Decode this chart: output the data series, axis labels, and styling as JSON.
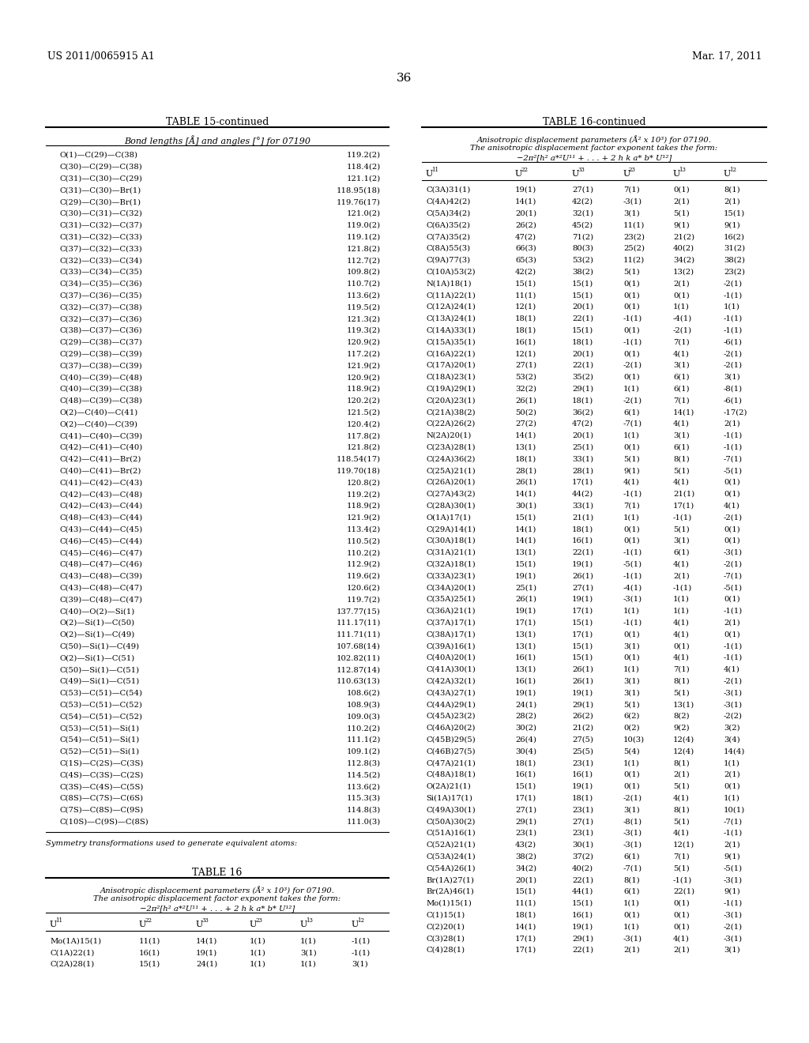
{
  "header_left": "US 2011/0065915 A1",
  "header_right": "Mar. 17, 2011",
  "page_number": "36",
  "table15_title": "TABLE 15-continued",
  "table15_subtitle": "Bond lengths [Å] and angles [°] for 07190",
  "table15_data": [
    [
      "O(1)—C(29)—C(38)",
      "119.2(2)"
    ],
    [
      "C(30)—C(29)—C(38)",
      "118.4(2)"
    ],
    [
      "C(31)—C(30)—C(29)",
      "121.1(2)"
    ],
    [
      "C(31)—C(30)—Br(1)",
      "118.95(18)"
    ],
    [
      "C(29)—C(30)—Br(1)",
      "119.76(17)"
    ],
    [
      "C(30)—C(31)—C(32)",
      "121.0(2)"
    ],
    [
      "C(31)—C(32)—C(37)",
      "119.0(2)"
    ],
    [
      "C(31)—C(32)—C(33)",
      "119.1(2)"
    ],
    [
      "C(37)—C(32)—C(33)",
      "121.8(2)"
    ],
    [
      "C(32)—C(33)—C(34)",
      "112.7(2)"
    ],
    [
      "C(33)—C(34)—C(35)",
      "109.8(2)"
    ],
    [
      "C(34)—C(35)—C(36)",
      "110.7(2)"
    ],
    [
      "C(37)—C(36)—C(35)",
      "113.6(2)"
    ],
    [
      "C(32)—C(37)—C(38)",
      "119.5(2)"
    ],
    [
      "C(32)—C(37)—C(36)",
      "121.3(2)"
    ],
    [
      "C(38)—C(37)—C(36)",
      "119.3(2)"
    ],
    [
      "C(29)—C(38)—C(37)",
      "120.9(2)"
    ],
    [
      "C(29)—C(38)—C(39)",
      "117.2(2)"
    ],
    [
      "C(37)—C(38)—C(39)",
      "121.9(2)"
    ],
    [
      "C(40)—C(39)—C(48)",
      "120.9(2)"
    ],
    [
      "C(40)—C(39)—C(38)",
      "118.9(2)"
    ],
    [
      "C(48)—C(39)—C(38)",
      "120.2(2)"
    ],
    [
      "O(2)—C(40)—C(41)",
      "121.5(2)"
    ],
    [
      "O(2)—C(40)—C(39)",
      "120.4(2)"
    ],
    [
      "C(41)—C(40)—C(39)",
      "117.8(2)"
    ],
    [
      "C(42)—C(41)—C(40)",
      "121.8(2)"
    ],
    [
      "C(42)—C(41)—Br(2)",
      "118.54(17)"
    ],
    [
      "C(40)—C(41)—Br(2)",
      "119.70(18)"
    ],
    [
      "C(41)—C(42)—C(43)",
      "120.8(2)"
    ],
    [
      "C(42)—C(43)—C(48)",
      "119.2(2)"
    ],
    [
      "C(42)—C(43)—C(44)",
      "118.9(2)"
    ],
    [
      "C(48)—C(43)—C(44)",
      "121.9(2)"
    ],
    [
      "C(43)—C(44)—C(45)",
      "113.4(2)"
    ],
    [
      "C(46)—C(45)—C(44)",
      "110.5(2)"
    ],
    [
      "C(45)—C(46)—C(47)",
      "110.2(2)"
    ],
    [
      "C(48)—C(47)—C(46)",
      "112.9(2)"
    ],
    [
      "C(43)—C(48)—C(39)",
      "119.6(2)"
    ],
    [
      "C(43)—C(48)—C(47)",
      "120.6(2)"
    ],
    [
      "C(39)—C(48)—C(47)",
      "119.7(2)"
    ],
    [
      "C(40)—O(2)—Si(1)",
      "137.77(15)"
    ],
    [
      "O(2)—Si(1)—C(50)",
      "111.17(11)"
    ],
    [
      "O(2)—Si(1)—C(49)",
      "111.71(11)"
    ],
    [
      "C(50)—Si(1)—C(49)",
      "107.68(14)"
    ],
    [
      "O(2)—Si(1)—C(51)",
      "102.82(11)"
    ],
    [
      "C(50)—Si(1)—C(51)",
      "112.87(14)"
    ],
    [
      "C(49)—Si(1)—C(51)",
      "110.63(13)"
    ],
    [
      "C(53)—C(51)—C(54)",
      "108.6(2)"
    ],
    [
      "C(53)—C(51)—C(52)",
      "108.9(3)"
    ],
    [
      "C(54)—C(51)—C(52)",
      "109.0(3)"
    ],
    [
      "C(53)—C(51)—Si(1)",
      "110.2(2)"
    ],
    [
      "C(54)—C(51)—Si(1)",
      "111.1(2)"
    ],
    [
      "C(52)—C(51)—Si(1)",
      "109.1(2)"
    ],
    [
      "C(1S)—C(2S)—C(3S)",
      "112.8(3)"
    ],
    [
      "C(4S)—C(3S)—C(2S)",
      "114.5(2)"
    ],
    [
      "C(3S)—C(4S)—C(5S)",
      "113.6(2)"
    ],
    [
      "C(8S)—C(7S)—C(6S)",
      "115.3(3)"
    ],
    [
      "C(7S)—C(8S)—C(9S)",
      "114.8(3)"
    ],
    [
      "C(10S)—C(9S)—C(8S)",
      "111.0(3)"
    ]
  ],
  "symmetry_note": "Symmetry transformations used to generate equivalent atoms:",
  "table16_title": "TABLE 16",
  "table16_desc1": "Anisotropic displacement parameters (Å² x 10³) for 07190.",
  "table16_desc2": "The anisotropic displacement factor exponent takes the form:",
  "table16_desc3": "−2π²[h² a*²U¹¹ + . . . + 2 h k a* b* U¹²]",
  "table16_right_title": "TABLE 16-continued",
  "table16_right_desc1": "Anisotropic displacement parameters (Å² x 10³) for 07190.",
  "table16_right_desc2": "The anisotropic displacement factor exponent takes the form:",
  "table16_right_desc3": "−2π²[h² a*²U¹¹ + . . . + 2 h k a* b* U¹²]",
  "table16_left_data": [
    [
      "Mo(1A)15(1)",
      "11(1)",
      "14(1)",
      "1(1)",
      "1(1)",
      "-1(1)"
    ],
    [
      "C(1A)22(1)",
      "16(1)",
      "19(1)",
      "1(1)",
      "3(1)",
      "-1(1)"
    ],
    [
      "C(2A)28(1)",
      "15(1)",
      "24(1)",
      "1(1)",
      "1(1)",
      "3(1)"
    ]
  ],
  "table16_right_data": [
    [
      "C(3A)31(1)",
      "19(1)",
      "27(1)",
      "7(1)",
      "0(1)",
      "8(1)"
    ],
    [
      "C(4A)42(2)",
      "14(1)",
      "42(2)",
      "-3(1)",
      "2(1)",
      "2(1)"
    ],
    [
      "C(5A)34(2)",
      "20(1)",
      "32(1)",
      "3(1)",
      "5(1)",
      "15(1)"
    ],
    [
      "C(6A)35(2)",
      "26(2)",
      "45(2)",
      "11(1)",
      "9(1)",
      "9(1)"
    ],
    [
      "C(7A)35(2)",
      "47(2)",
      "71(2)",
      "23(2)",
      "21(2)",
      "16(2)"
    ],
    [
      "C(8A)55(3)",
      "66(3)",
      "80(3)",
      "25(2)",
      "40(2)",
      "31(2)"
    ],
    [
      "C(9A)77(3)",
      "65(3)",
      "53(2)",
      "11(2)",
      "34(2)",
      "38(2)"
    ],
    [
      "C(10A)53(2)",
      "42(2)",
      "38(2)",
      "5(1)",
      "13(2)",
      "23(2)"
    ],
    [
      "N(1A)18(1)",
      "15(1)",
      "15(1)",
      "0(1)",
      "2(1)",
      "-2(1)"
    ],
    [
      "C(11A)22(1)",
      "11(1)",
      "15(1)",
      "0(1)",
      "0(1)",
      "-1(1)"
    ],
    [
      "C(12A)24(1)",
      "12(1)",
      "20(1)",
      "0(1)",
      "1(1)",
      "1(1)"
    ],
    [
      "C(13A)24(1)",
      "18(1)",
      "22(1)",
      "-1(1)",
      "-4(1)",
      "-1(1)"
    ],
    [
      "C(14A)33(1)",
      "18(1)",
      "15(1)",
      "0(1)",
      "-2(1)",
      "-1(1)"
    ],
    [
      "C(15A)35(1)",
      "16(1)",
      "18(1)",
      "-1(1)",
      "7(1)",
      "-6(1)"
    ],
    [
      "C(16A)22(1)",
      "12(1)",
      "20(1)",
      "0(1)",
      "4(1)",
      "-2(1)"
    ],
    [
      "C(17A)20(1)",
      "27(1)",
      "22(1)",
      "-2(1)",
      "3(1)",
      "-2(1)"
    ],
    [
      "C(18A)23(1)",
      "53(2)",
      "35(2)",
      "0(1)",
      "6(1)",
      "3(1)"
    ],
    [
      "C(19A)29(1)",
      "32(2)",
      "29(1)",
      "1(1)",
      "6(1)",
      "-8(1)"
    ],
    [
      "C(20A)23(1)",
      "26(1)",
      "18(1)",
      "-2(1)",
      "7(1)",
      "-6(1)"
    ],
    [
      "C(21A)38(2)",
      "50(2)",
      "36(2)",
      "6(1)",
      "14(1)",
      "-17(2)"
    ],
    [
      "C(22A)26(2)",
      "27(2)",
      "47(2)",
      "-7(1)",
      "4(1)",
      "2(1)"
    ],
    [
      "N(2A)20(1)",
      "14(1)",
      "20(1)",
      "1(1)",
      "3(1)",
      "-1(1)"
    ],
    [
      "C(23A)28(1)",
      "13(1)",
      "25(1)",
      "0(1)",
      "6(1)",
      "-1(1)"
    ],
    [
      "C(24A)36(2)",
      "18(1)",
      "33(1)",
      "5(1)",
      "8(1)",
      "-7(1)"
    ],
    [
      "C(25A)21(1)",
      "28(1)",
      "28(1)",
      "9(1)",
      "5(1)",
      "-5(1)"
    ],
    [
      "C(26A)20(1)",
      "26(1)",
      "17(1)",
      "4(1)",
      "4(1)",
      "0(1)"
    ],
    [
      "C(27A)43(2)",
      "14(1)",
      "44(2)",
      "-1(1)",
      "21(1)",
      "0(1)"
    ],
    [
      "C(28A)30(1)",
      "30(1)",
      "33(1)",
      "7(1)",
      "17(1)",
      "4(1)"
    ],
    [
      "O(1A)17(1)",
      "15(1)",
      "21(1)",
      "1(1)",
      "-1(1)",
      "-2(1)"
    ],
    [
      "C(29A)14(1)",
      "14(1)",
      "18(1)",
      "0(1)",
      "5(1)",
      "0(1)"
    ],
    [
      "C(30A)18(1)",
      "14(1)",
      "16(1)",
      "0(1)",
      "3(1)",
      "0(1)"
    ],
    [
      "C(31A)21(1)",
      "13(1)",
      "22(1)",
      "-1(1)",
      "6(1)",
      "-3(1)"
    ],
    [
      "C(32A)18(1)",
      "15(1)",
      "19(1)",
      "-5(1)",
      "4(1)",
      "-2(1)"
    ],
    [
      "C(33A)23(1)",
      "19(1)",
      "26(1)",
      "-1(1)",
      "2(1)",
      "-7(1)"
    ],
    [
      "C(34A)20(1)",
      "25(1)",
      "27(1)",
      "-4(1)",
      "-1(1)",
      "-5(1)"
    ],
    [
      "C(35A)25(1)",
      "26(1)",
      "19(1)",
      "-3(1)",
      "1(1)",
      "0(1)"
    ],
    [
      "C(36A)21(1)",
      "19(1)",
      "17(1)",
      "1(1)",
      "1(1)",
      "-1(1)"
    ],
    [
      "C(37A)17(1)",
      "17(1)",
      "15(1)",
      "-1(1)",
      "4(1)",
      "2(1)"
    ],
    [
      "C(38A)17(1)",
      "13(1)",
      "17(1)",
      "0(1)",
      "4(1)",
      "0(1)"
    ],
    [
      "C(39A)16(1)",
      "13(1)",
      "15(1)",
      "3(1)",
      "0(1)",
      "-1(1)"
    ],
    [
      "C(40A)20(1)",
      "16(1)",
      "15(1)",
      "0(1)",
      "4(1)",
      "-1(1)"
    ],
    [
      "C(41A)30(1)",
      "13(1)",
      "26(1)",
      "1(1)",
      "7(1)",
      "4(1)"
    ],
    [
      "C(42A)32(1)",
      "16(1)",
      "26(1)",
      "3(1)",
      "8(1)",
      "-2(1)"
    ],
    [
      "C(43A)27(1)",
      "19(1)",
      "19(1)",
      "3(1)",
      "5(1)",
      "-3(1)"
    ],
    [
      "C(44A)29(1)",
      "24(1)",
      "29(1)",
      "5(1)",
      "13(1)",
      "-3(1)"
    ],
    [
      "C(45A)23(2)",
      "28(2)",
      "26(2)",
      "6(2)",
      "8(2)",
      "-2(2)"
    ],
    [
      "C(46A)20(2)",
      "30(2)",
      "21(2)",
      "0(2)",
      "9(2)",
      "3(2)"
    ],
    [
      "C(45B)29(5)",
      "26(4)",
      "27(5)",
      "10(3)",
      "12(4)",
      "3(4)"
    ],
    [
      "C(46B)27(5)",
      "30(4)",
      "25(5)",
      "5(4)",
      "12(4)",
      "14(4)"
    ],
    [
      "C(47A)21(1)",
      "18(1)",
      "23(1)",
      "1(1)",
      "8(1)",
      "1(1)"
    ],
    [
      "C(48A)18(1)",
      "16(1)",
      "16(1)",
      "0(1)",
      "2(1)",
      "2(1)"
    ],
    [
      "O(2A)21(1)",
      "15(1)",
      "19(1)",
      "0(1)",
      "5(1)",
      "0(1)"
    ],
    [
      "Si(1A)17(1)",
      "17(1)",
      "18(1)",
      "-2(1)",
      "4(1)",
      "1(1)"
    ],
    [
      "C(49A)30(1)",
      "27(1)",
      "23(1)",
      "3(1)",
      "8(1)",
      "10(1)"
    ],
    [
      "C(50A)30(2)",
      "29(1)",
      "27(1)",
      "-8(1)",
      "5(1)",
      "-7(1)"
    ],
    [
      "C(51A)16(1)",
      "23(1)",
      "23(1)",
      "-3(1)",
      "4(1)",
      "-1(1)"
    ],
    [
      "C(52A)21(1)",
      "43(2)",
      "30(1)",
      "-3(1)",
      "12(1)",
      "2(1)"
    ],
    [
      "C(53A)24(1)",
      "38(2)",
      "37(2)",
      "6(1)",
      "7(1)",
      "9(1)"
    ],
    [
      "C(54A)26(1)",
      "34(2)",
      "40(2)",
      "-7(1)",
      "5(1)",
      "-5(1)"
    ],
    [
      "Br(1A)27(1)",
      "20(1)",
      "22(1)",
      "8(1)",
      "-1(1)",
      "-3(1)"
    ],
    [
      "Br(2A)46(1)",
      "15(1)",
      "44(1)",
      "6(1)",
      "22(1)",
      "9(1)"
    ],
    [
      "Mo(1)15(1)",
      "11(1)",
      "15(1)",
      "1(1)",
      "0(1)",
      "-1(1)"
    ],
    [
      "C(1)15(1)",
      "18(1)",
      "16(1)",
      "0(1)",
      "0(1)",
      "-3(1)"
    ],
    [
      "C(2)20(1)",
      "14(1)",
      "19(1)",
      "1(1)",
      "0(1)",
      "-2(1)"
    ],
    [
      "C(3)28(1)",
      "17(1)",
      "29(1)",
      "-3(1)",
      "4(1)",
      "-3(1)"
    ],
    [
      "C(4)28(1)",
      "17(1)",
      "22(1)",
      "2(1)",
      "2(1)",
      "3(1)"
    ]
  ],
  "bg_color": "#ffffff",
  "text_color": "#000000",
  "font_size": 7.2,
  "title_font_size": 9
}
